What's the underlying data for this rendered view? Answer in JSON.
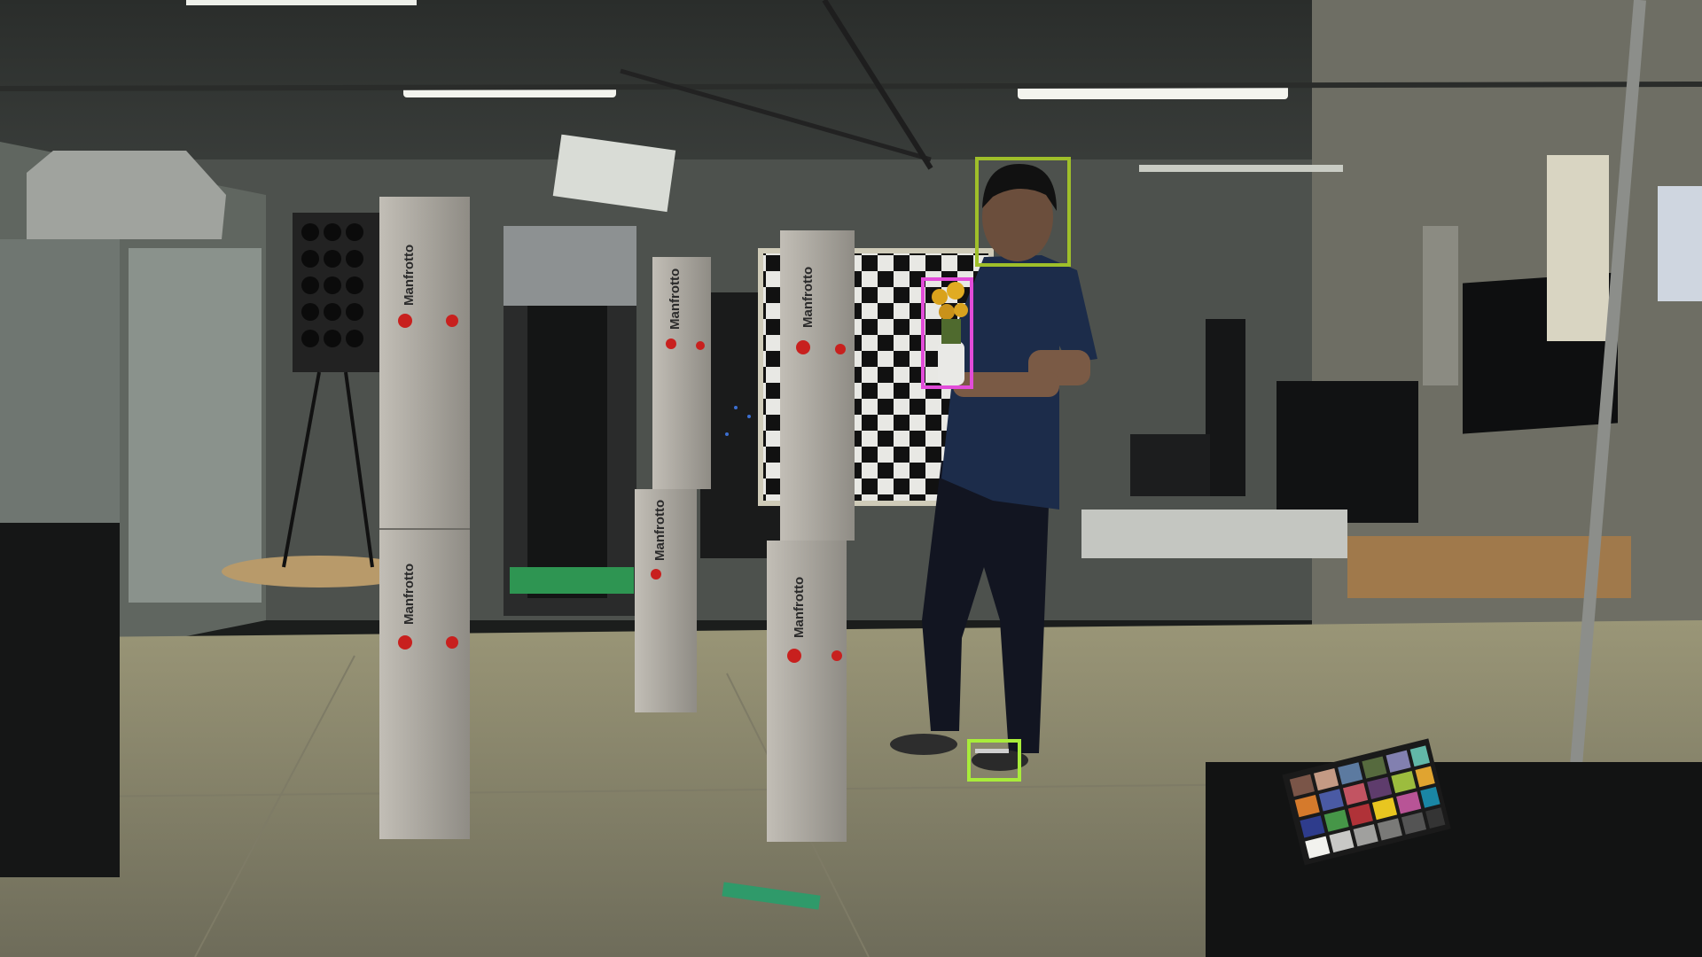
{
  "scene": {
    "box_brand_text": "Manfrotto"
  },
  "annotations": [
    {
      "label": "",
      "color": "#9fbf2a"
    },
    {
      "label": "",
      "color": "#e24cd9"
    },
    {
      "label": "",
      "color": "#a8ec3a"
    }
  ],
  "colors": {
    "floor": "#8d8a72",
    "ceiling": "#3a3d3a",
    "wall": "#565a56",
    "box": "#a9a6a0",
    "shirt": "#1c2c4a"
  }
}
